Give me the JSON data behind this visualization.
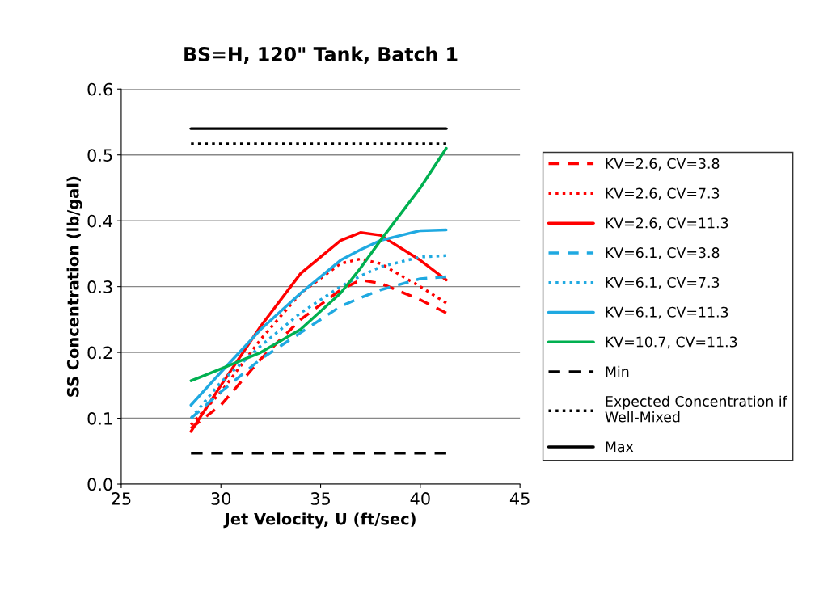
{
  "chart_data": {
    "type": "line",
    "title": "BS=H, 120\" Tank, Batch 1",
    "xlabel": "Jet Velocity, U (ft/sec)",
    "ylabel": "SS Concentration (lb/gal)",
    "x": [
      28.5,
      30,
      32,
      34,
      36,
      37,
      38,
      40,
      41.3
    ],
    "series": [
      {
        "name": "KV=2.6, CV=3.8",
        "color": "#ff0000",
        "line_style": "dashed",
        "values": [
          0.085,
          0.12,
          0.19,
          0.25,
          0.295,
          0.31,
          0.305,
          0.28,
          0.26
        ]
      },
      {
        "name": "KV=2.6, CV=7.3",
        "color": "#ff0000",
        "line_style": "dotted",
        "values": [
          0.09,
          0.14,
          0.22,
          0.29,
          0.335,
          0.342,
          0.335,
          0.3,
          0.275
        ]
      },
      {
        "name": "KV=2.6, CV=11.3",
        "color": "#ff0000",
        "line_style": "solid",
        "values": [
          0.08,
          0.15,
          0.24,
          0.32,
          0.37,
          0.382,
          0.378,
          0.34,
          0.31
        ]
      },
      {
        "name": "KV=6.1, CV=3.8",
        "color": "#1fa9e1",
        "line_style": "dashed",
        "values": [
          0.1,
          0.14,
          0.19,
          0.23,
          0.27,
          0.283,
          0.295,
          0.312,
          0.315
        ]
      },
      {
        "name": "KV=6.1, CV=7.3",
        "color": "#1fa9e1",
        "line_style": "dotted",
        "values": [
          0.1,
          0.155,
          0.21,
          0.26,
          0.3,
          0.316,
          0.33,
          0.345,
          0.347
        ]
      },
      {
        "name": "KV=6.1, CV=11.3",
        "color": "#1fa9e1",
        "line_style": "solid",
        "values": [
          0.12,
          0.17,
          0.235,
          0.29,
          0.34,
          0.356,
          0.37,
          0.385,
          0.386
        ]
      },
      {
        "name": "KV=10.7, CV=11.3",
        "color": "#00b050",
        "line_style": "solid",
        "values": [
          0.157,
          0.175,
          0.2,
          0.235,
          0.29,
          0.328,
          0.37,
          0.45,
          0.51
        ]
      },
      {
        "name": "Min",
        "color": "#000000",
        "line_style": "dashed",
        "values": [
          0.047,
          0.047,
          0.047,
          0.047,
          0.047,
          0.047,
          0.047,
          0.047,
          0.047
        ]
      },
      {
        "name": "Expected Concentration if Well-Mixed",
        "color": "#000000",
        "line_style": "dotted",
        "values": [
          0.517,
          0.517,
          0.517,
          0.517,
          0.517,
          0.517,
          0.517,
          0.517,
          0.517
        ]
      },
      {
        "name": "Max",
        "color": "#000000",
        "line_style": "solid",
        "values": [
          0.54,
          0.54,
          0.54,
          0.54,
          0.54,
          0.54,
          0.54,
          0.54,
          0.54
        ]
      }
    ],
    "xlim": [
      25,
      45
    ],
    "xticks": [
      25,
      30,
      35,
      40,
      45
    ],
    "ylim": [
      0,
      0.6
    ],
    "yticks": [
      {
        "value": 0,
        "label": "0.0"
      },
      0.1,
      0.2,
      0.3,
      0.4,
      0.5,
      0.6
    ],
    "grid": "y",
    "legend": "right",
    "marker": "none"
  }
}
